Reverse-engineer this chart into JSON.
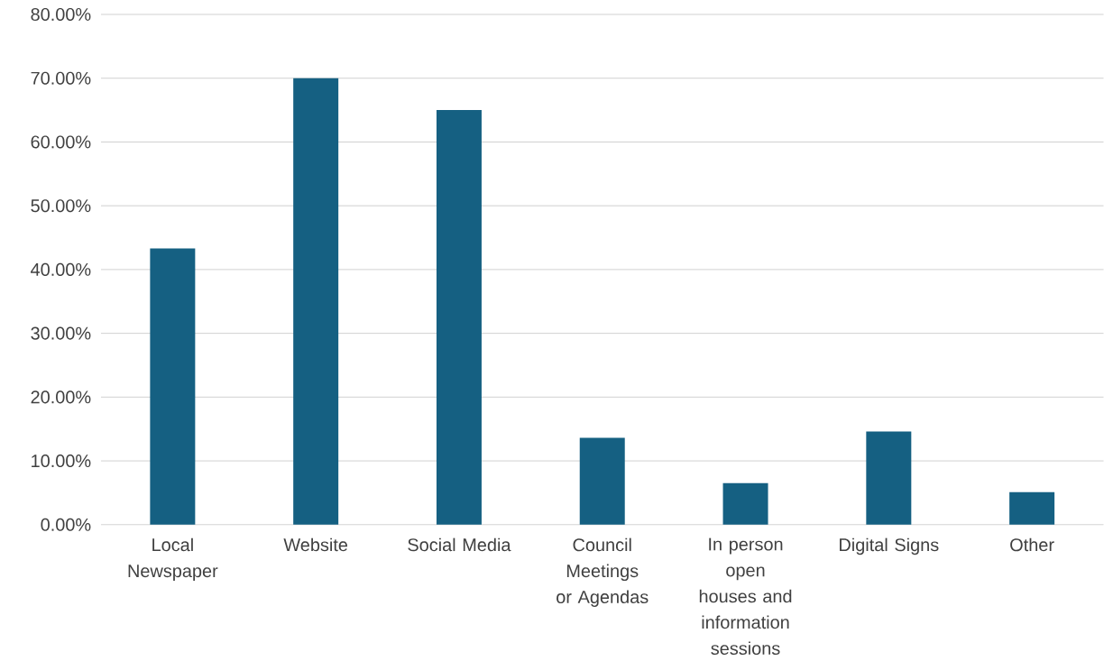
{
  "chart_data": {
    "type": "bar",
    "categories": [
      "Local Newspaper",
      "Website",
      "Social Media",
      "Council Meetings or Agendas",
      "In person open houses and information sessions",
      "Digital Signs",
      "Other"
    ],
    "values": [
      43.3,
      70,
      65,
      13.6,
      6.5,
      14.6,
      5.1
    ],
    "color": "#156082",
    "ylim": [
      0,
      80
    ],
    "yticks": [
      {
        "value": 0,
        "label": "0.00%"
      },
      {
        "value": 10,
        "label": "10.00%"
      },
      {
        "value": 20,
        "label": "20.00%"
      },
      {
        "value": 30,
        "label": "30.00%"
      },
      {
        "value": 40,
        "label": "40.00%"
      },
      {
        "value": 50,
        "label": "50.00%"
      },
      {
        "value": 60,
        "label": "60.00%"
      },
      {
        "value": 70,
        "label": "70.00%"
      },
      {
        "value": 80,
        "label": "80.00%"
      }
    ],
    "grid": "y"
  }
}
